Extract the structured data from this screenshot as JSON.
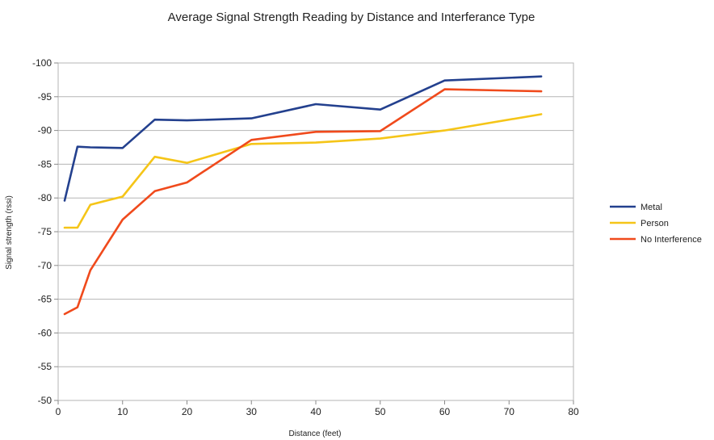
{
  "chart_data": {
    "type": "line",
    "title": "Average Signal Strength Reading by Distance and  Interferance Type",
    "xlabel": "Distance (feet)",
    "ylabel": "Signal strength (rssi)",
    "xlim": [
      0,
      80
    ],
    "ylim": [
      -50,
      -100
    ],
    "y_axis_inverted": true,
    "x_ticks": [
      0,
      10,
      20,
      30,
      40,
      50,
      60,
      70,
      80
    ],
    "y_ticks": [
      -100,
      -95,
      -90,
      -85,
      -80,
      -75,
      -70,
      -65,
      -60,
      -55,
      -50
    ],
    "grid": "horizontal",
    "legend_position": "right",
    "series": [
      {
        "name": "Metal",
        "color": "#23408e",
        "points": [
          [
            1,
            -79.6
          ],
          [
            3,
            -87.6
          ],
          [
            5,
            -87.5
          ],
          [
            10,
            -87.4
          ],
          [
            15,
            -91.6
          ],
          [
            20,
            -91.5
          ],
          [
            30,
            -91.8
          ],
          [
            40,
            -93.9
          ],
          [
            50,
            -93.1
          ],
          [
            60,
            -97.4
          ],
          [
            75,
            -98.0
          ]
        ]
      },
      {
        "name": "Person",
        "color": "#f5c518",
        "points": [
          [
            1,
            -75.6
          ],
          [
            3,
            -75.6
          ],
          [
            5,
            -79.0
          ],
          [
            10,
            -80.2
          ],
          [
            15,
            -86.1
          ],
          [
            20,
            -85.2
          ],
          [
            30,
            -88.0
          ],
          [
            40,
            -88.2
          ],
          [
            50,
            -88.8
          ],
          [
            60,
            -90.0
          ],
          [
            75,
            -92.4
          ]
        ]
      },
      {
        "name": "No Interference",
        "color": "#f04a1c",
        "points": [
          [
            1,
            -62.8
          ],
          [
            3,
            -63.8
          ],
          [
            5,
            -69.3
          ],
          [
            10,
            -76.8
          ],
          [
            15,
            -81.0
          ],
          [
            20,
            -82.3
          ],
          [
            30,
            -88.6
          ],
          [
            40,
            -89.8
          ],
          [
            50,
            -89.9
          ],
          [
            60,
            -96.1
          ],
          [
            75,
            -95.8
          ]
        ]
      }
    ]
  }
}
